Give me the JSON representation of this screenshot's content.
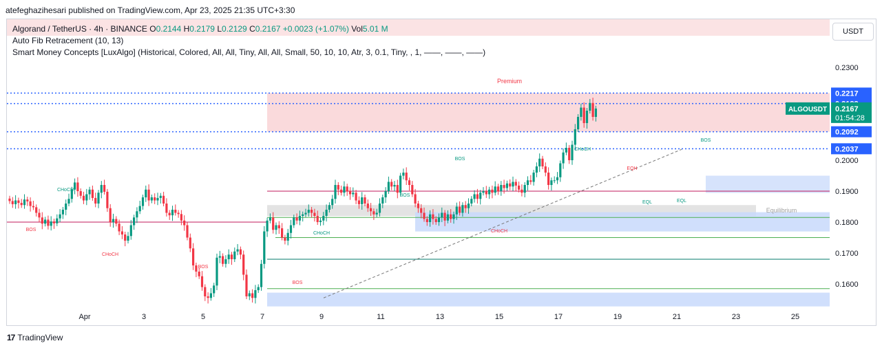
{
  "header": {
    "published": "atefeghazihesari published on TradingView.com, Apr 23, 2025 21:35 UTC+3:30"
  },
  "legend": {
    "symbol": "Algorand / TetherUS · 4h · BINANCE",
    "o_label": "O",
    "o_value": "0.2144",
    "h_label": "H",
    "h_value": "0.2179",
    "l_label": "L",
    "l_value": "0.2129",
    "c_label": "C",
    "c_value": "0.2167",
    "change": "+0.0023 (+1.07%)",
    "vol_label": "Vol",
    "vol_value": "5.01 M",
    "indicator1": "Auto Fib Retracement (10, 13)",
    "indicator2": "Smart Money Concepts [LuxAlgo] (Historical, Colored, All, All, Tiny, All, All, Small, 50, 10, 10, Atr, 3, 0.1, Tiny, , 1, ——, ——, ——)"
  },
  "toolbar": {
    "currency": "USDT"
  },
  "footer": {
    "brand": "TradingView",
    "logo": "17"
  },
  "colors": {
    "up": "#089981",
    "down": "#f23645",
    "fib_blue": "#2962ff",
    "premium_zone": "#f9d4d6",
    "discount_zone": "#c8d9fb",
    "equilibrium_zone": "#e0e0e0"
  },
  "chart_data": {
    "type": "candlestick",
    "symbol": "ALGOUSDT",
    "ylim": [
      0.153,
      0.235
    ],
    "y_ticks": [
      "0.2300",
      "0.2000",
      "0.1900",
      "0.1800",
      "0.1700",
      "0.1600"
    ],
    "x_ticks": [
      "Apr",
      "3",
      "5",
      "7",
      "9",
      "11",
      "13",
      "15",
      "17",
      "19",
      "21",
      "23",
      "25"
    ],
    "price_labels": [
      {
        "value": "0.2217",
        "kind": "fib"
      },
      {
        "value": "0.2183",
        "kind": "fib"
      },
      {
        "value": "0.2167",
        "kind": "last",
        "symbol": "ALGOUSDT",
        "countdown": "01:54:28"
      },
      {
        "value": "0.2092",
        "kind": "fib"
      },
      {
        "value": "0.2037",
        "kind": "fib"
      }
    ],
    "zone_labels": {
      "premium": "Premium",
      "equilibrium": "Equilibrium"
    },
    "structure_labels": [
      {
        "text": "CHoCH",
        "color": "green"
      },
      {
        "text": "BOS",
        "color": "red"
      },
      {
        "text": "CHoCH",
        "color": "red"
      },
      {
        "text": "BOS",
        "color": "red"
      },
      {
        "text": "CHoCH",
        "color": "green"
      },
      {
        "text": "BOS",
        "color": "red"
      },
      {
        "text": "BOS",
        "color": "green"
      },
      {
        "text": "BOS",
        "color": "green"
      },
      {
        "text": "CHoCH",
        "color": "red"
      },
      {
        "text": "CHoCH",
        "color": "green"
      },
      {
        "text": "EQH",
        "color": "red"
      },
      {
        "text": "EQL",
        "color": "green"
      },
      {
        "text": "EQL",
        "color": "green"
      },
      {
        "text": "BOS",
        "color": "green"
      }
    ],
    "closes": [
      0.1868,
      0.1858,
      0.187,
      0.1862,
      0.1855,
      0.1873,
      0.1867,
      0.1852,
      0.1848,
      0.183,
      0.1815,
      0.1795,
      0.1808,
      0.1788,
      0.1802,
      0.1796,
      0.1812,
      0.1825,
      0.184,
      0.186,
      0.1875,
      0.1905,
      0.1928,
      0.19,
      0.1885,
      0.187,
      0.189,
      0.1905,
      0.1878,
      0.186,
      0.1895,
      0.192,
      0.1898,
      0.1845,
      0.18,
      0.181,
      0.1795,
      0.177,
      0.176,
      0.174,
      0.1755,
      0.179,
      0.1815,
      0.1835,
      0.1852,
      0.188,
      0.1905,
      0.187,
      0.188,
      0.187,
      0.1878,
      0.1885,
      0.186,
      0.183,
      0.1822,
      0.184,
      0.183,
      0.1826,
      0.1805,
      0.179,
      0.175,
      0.1715,
      0.166,
      0.164,
      0.1625,
      0.159,
      0.156,
      0.1555,
      0.157,
      0.1595,
      0.1685,
      0.169,
      0.1665,
      0.168,
      0.1695,
      0.168,
      0.1705,
      0.1712,
      0.1695,
      0.163,
      0.156,
      0.157,
      0.1555,
      0.158,
      0.159,
      0.1665,
      0.177,
      0.1805,
      0.1815,
      0.1775,
      0.179,
      0.178,
      0.175,
      0.174,
      0.1765,
      0.179,
      0.1815,
      0.1805,
      0.182,
      0.1825,
      0.183,
      0.184,
      0.183,
      0.182,
      0.18,
      0.1805,
      0.182,
      0.184,
      0.1855,
      0.1875,
      0.192,
      0.1905,
      0.1895,
      0.1915,
      0.19,
      0.189,
      0.1895,
      0.187,
      0.1858,
      0.188,
      0.186,
      0.1845,
      0.1835,
      0.1825,
      0.183,
      0.186,
      0.188,
      0.19,
      0.193,
      0.1915,
      0.192,
      0.1895,
      0.195,
      0.196,
      0.1935,
      0.192,
      0.189,
      0.186,
      0.1845,
      0.183,
      0.181,
      0.18,
      0.1825,
      0.181,
      0.18,
      0.1815,
      0.183,
      0.1805,
      0.1825,
      0.181,
      0.1825,
      0.185,
      0.183,
      0.1855,
      0.1845,
      0.186,
      0.1875,
      0.189,
      0.1875,
      0.1895,
      0.19,
      0.189,
      0.1905,
      0.1895,
      0.1915,
      0.19,
      0.192,
      0.191,
      0.1925,
      0.1915,
      0.193,
      0.1918,
      0.1905,
      0.1895,
      0.192,
      0.1935,
      0.193,
      0.196,
      0.198,
      0.2005,
      0.198,
      0.196,
      0.192,
      0.1935,
      0.1935,
      0.1945,
      0.199,
      0.2025,
      0.204,
      0.2,
      0.205,
      0.21,
      0.214,
      0.217,
      0.212,
      0.216,
      0.2185,
      0.214,
      0.2167
    ]
  }
}
